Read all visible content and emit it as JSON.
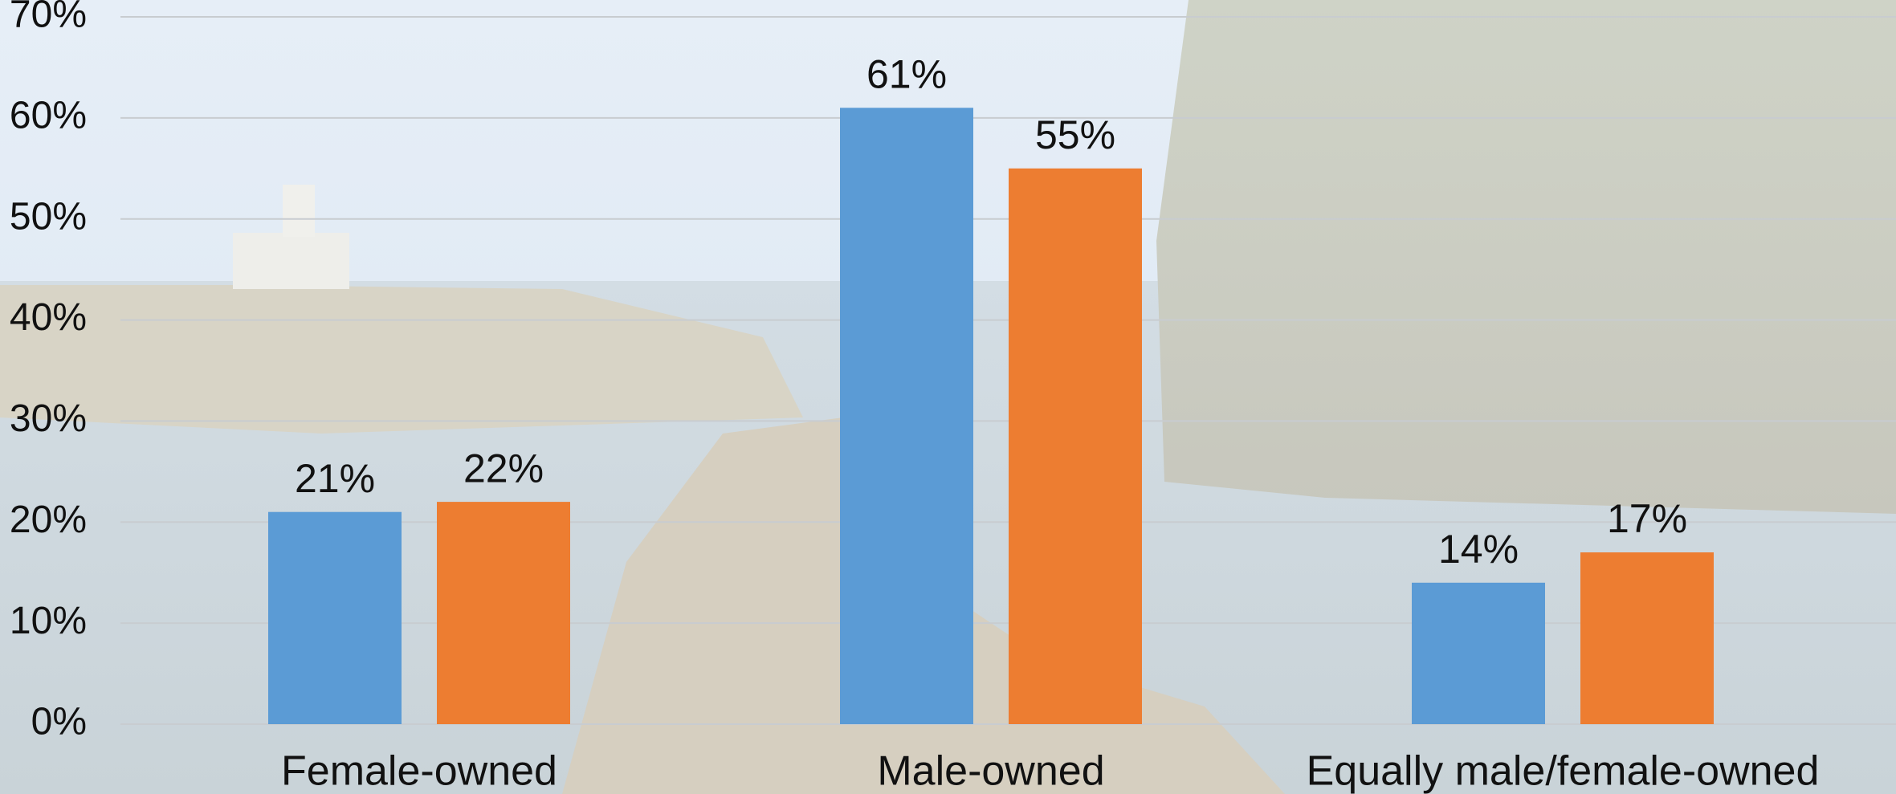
{
  "chart_data": {
    "type": "bar",
    "categories": [
      "Female-owned",
      "Male-owned",
      "Equally male/female-owned"
    ],
    "series": [
      {
        "color": "#5b9bd5",
        "values": [
          21,
          61,
          14
        ],
        "value_labels": [
          "21%",
          "61%",
          "14%"
        ]
      },
      {
        "color": "#ed7d31",
        "values": [
          22,
          55,
          17
        ],
        "value_labels": [
          "22%",
          "55%",
          "17%"
        ]
      }
    ],
    "ylim": [
      0,
      70
    ],
    "yticks": [
      {
        "value": 0,
        "label": "0%"
      },
      {
        "value": 10,
        "label": "10%"
      },
      {
        "value": 20,
        "label": "20%"
      },
      {
        "value": 30,
        "label": "30%"
      },
      {
        "value": 40,
        "label": "40%"
      },
      {
        "value": 50,
        "label": "50%"
      },
      {
        "value": 60,
        "label": "60%"
      },
      {
        "value": 70,
        "label": "70%"
      }
    ],
    "grid": true
  }
}
